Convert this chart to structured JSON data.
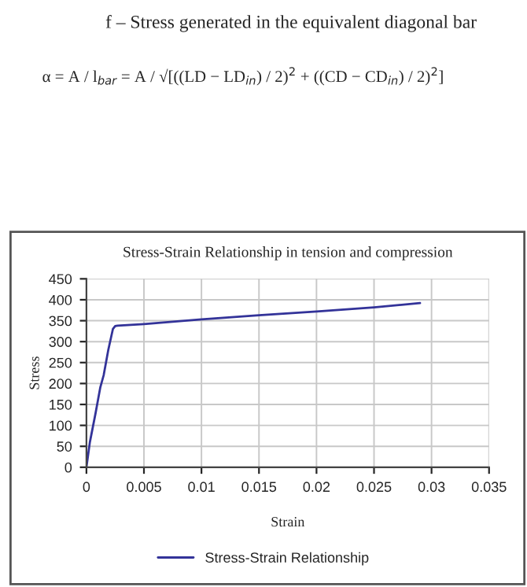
{
  "chart_data": {
    "type": "line",
    "title": "Stress-Strain Relationship in tension and compression",
    "xlabel": "Strain",
    "ylabel": "Stress",
    "annotations": [
      "f – Stress generated in the equivalent diagonal bar",
      "α = A / l$_{bar}$ = A / √[((LD − LD$_{in}$) / 2)$^{2}$ + ((CD − CD$_{in}$) / 2)$^{2}$]"
    ],
    "series": [
      {
        "name": "Stress-Strain Relationship",
        "color": "#333399",
        "x": [
          0,
          0.0003,
          0.0008,
          0.0012,
          0.0015,
          0.0019,
          0.0023,
          0.0025,
          0.0027,
          0.005,
          0.01,
          0.015,
          0.02,
          0.025,
          0.029
        ],
        "values": [
          0,
          60,
          130,
          190,
          220,
          280,
          330,
          337,
          338,
          342,
          353,
          363,
          372,
          382,
          392
        ]
      }
    ],
    "xlim": [
      0,
      0.035
    ],
    "xticks": [
      0,
      0.005,
      0.01,
      0.015,
      0.02,
      0.025,
      0.03,
      0.035
    ],
    "ylim": [
      0,
      450
    ],
    "yticks": [
      0,
      50,
      100,
      150,
      200,
      250,
      300,
      350,
      400,
      450
    ],
    "grid": true,
    "legend": "bottom",
    "marker": "none",
    "line_style": "solid"
  }
}
